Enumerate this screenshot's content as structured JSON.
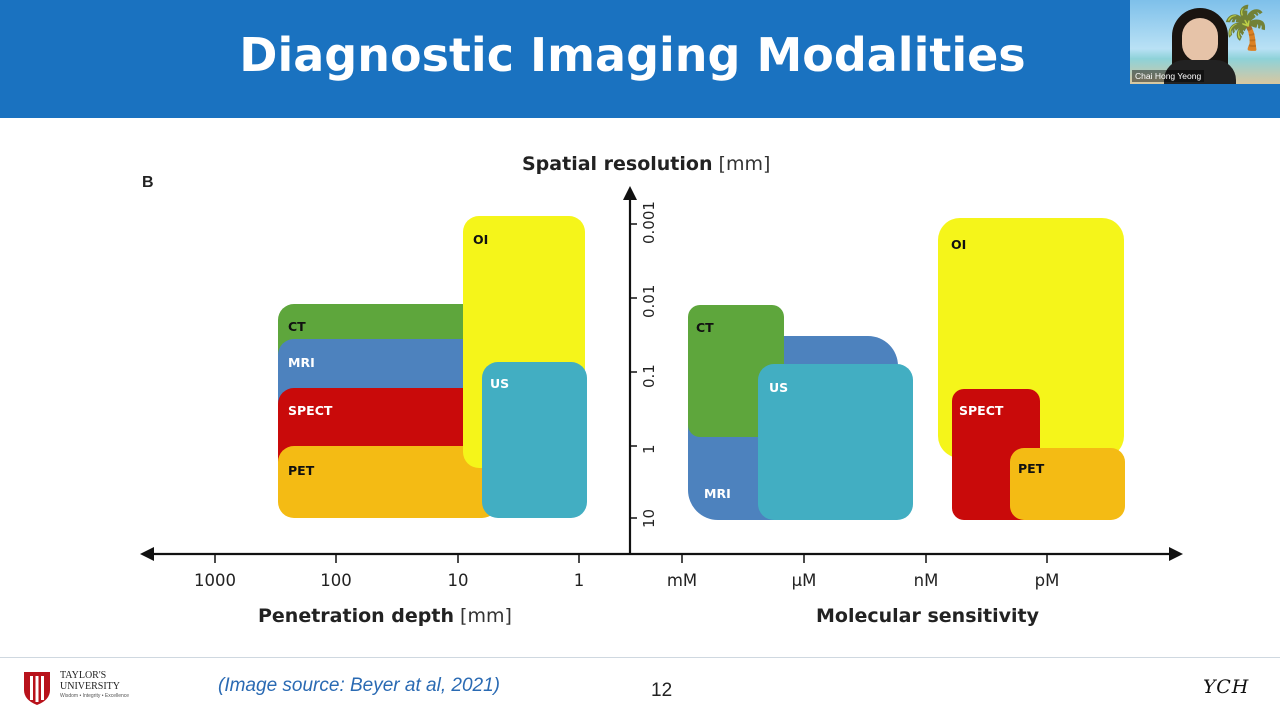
{
  "slide": {
    "title": "Diagnostic Imaging Modalities",
    "page_number": "12",
    "source_text": "(Image source: Beyer at al, 2021)",
    "signature": "YCH",
    "header_color": "#1a72c0",
    "source_color": "#2a6ab3"
  },
  "video": {
    "participant_name": "Chai Hong Yeong"
  },
  "logo": {
    "name_line1": "TAYLOR'S",
    "name_line2": "UNIVERSITY",
    "tagline": "Wisdom • Integrity • Excellence"
  },
  "figure": {
    "panel_letter": "B",
    "y_axis": {
      "title": "Spatial resolution",
      "unit": "[mm]",
      "ticks": [
        "0.001",
        "0.01",
        "0.1",
        "1",
        "10"
      ]
    },
    "left_axis": {
      "title": "Penetration depth",
      "unit": "[mm]",
      "ticks": [
        "1000",
        "100",
        "10",
        "1"
      ]
    },
    "right_axis": {
      "title": "Molecular sensitivity",
      "ticks": [
        "mM",
        "µM",
        "nM",
        "pM"
      ]
    },
    "left_panel": [
      {
        "label": "CT",
        "color": "#5ea63c"
      },
      {
        "label": "MRI",
        "color": "#4d82be"
      },
      {
        "label": "SPECT",
        "color": "#c90a0a"
      },
      {
        "label": "PET",
        "color": "#f4bb14"
      },
      {
        "label": "OI",
        "color": "#f5f51a"
      },
      {
        "label": "US",
        "color": "#42aec2"
      }
    ],
    "right_panel": [
      {
        "label": "CT",
        "color": "#5ea63c"
      },
      {
        "label": "MRI",
        "color": "#4d82be"
      },
      {
        "label": "US",
        "color": "#42aec2"
      },
      {
        "label": "OI",
        "color": "#f5f51a"
      },
      {
        "label": "SPECT",
        "color": "#c90a0a"
      },
      {
        "label": "PET",
        "color": "#f4bb14"
      }
    ]
  }
}
